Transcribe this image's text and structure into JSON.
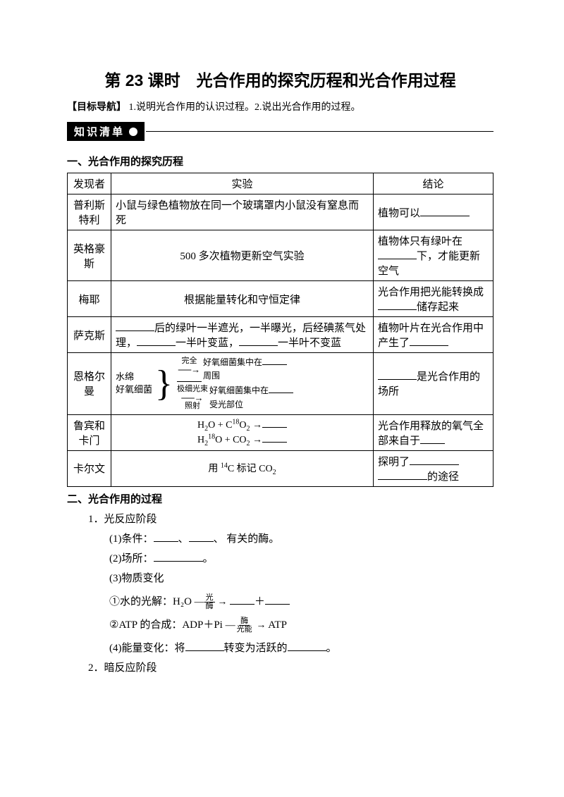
{
  "title": "第 23 课时　光合作用的探究历程和光合作用过程",
  "objective_label": "【目标导航】",
  "objective_text": "1.说明光合作用的认识过程。2.说出光合作用的过程。",
  "badge": "知识清单",
  "section1": "一、光合作用的探究历程",
  "table": {
    "headers": [
      "发现者",
      "实验",
      "结论"
    ],
    "rows": [
      {
        "author": "普利斯特利",
        "exp_plain": "小鼠与绿色植物放在同一个玻璃罩内小鼠没有窒息而死",
        "res_prefix": "植物可以"
      },
      {
        "author": "英格豪斯",
        "exp_plain": "500 多次植物更新空气实验",
        "res_a": "植物体只有绿叶在",
        "res_b": "下，才能更新空气"
      },
      {
        "author": "梅耶",
        "exp_plain": "根据能量转化和守恒定律",
        "res_a": "光合作用把光能转换成",
        "res_b": "储存起来"
      },
      {
        "author": "萨克斯",
        "exp_a": "后的绿叶一半遮光，一半曝光，后经碘蒸气处理，",
        "exp_b": "一半叶变蓝，",
        "exp_c": "一半叶不变蓝",
        "res_a": "植物叶片在光合作用中产生了"
      },
      {
        "author": "恩格尔曼",
        "left_a": "水绵",
        "left_b": "好氧细菌",
        "path1_top": "完全",
        "path1_bot": "",
        "path1_text_a": "好氧细菌集中在",
        "path1_text_b": "周围",
        "path2_top": "极细光束",
        "path2_bot": "照射",
        "path2_text_a": "好氧细菌集中在",
        "path2_text_b": "受光部位",
        "res_b": "是光合作用的场所"
      },
      {
        "author": "鲁宾和卡门",
        "eq1_left": "H₂O + C¹⁸O₂ →",
        "eq2_left": "H₂¹⁸O + CO₂ →",
        "res_a": "光合作用释放的氧气全部来自于"
      },
      {
        "author": "卡尔文",
        "exp_plain": "用 ¹⁴C 标记 CO₂",
        "res_a": "探明了",
        "res_b": "的途径"
      }
    ]
  },
  "section2": "二、光合作用的过程",
  "proc": {
    "p1": "1．光反应阶段",
    "p1_1": "(1)条件：",
    "p1_1b": "、",
    "p1_1c": "、 有关的酶。",
    "p1_2": "(2)场所：",
    "p1_2b": "。",
    "p1_3": "(3)物质变化",
    "p1_3a": "①水的光解：H₂O ",
    "p1_3a_top": "光",
    "p1_3a_bot": "酶",
    "p1_3a_plus": "＋",
    "p1_3b": "②ATP 的合成：ADP＋Pi ",
    "p1_3b_top": "酶",
    "p1_3b_bot": "光能",
    "p1_3b_end": " ATP",
    "p1_4a": "(4)能量变化：将",
    "p1_4b": "转变为活跃的",
    "p1_4c": "。",
    "p2": "2．暗反应阶段"
  }
}
